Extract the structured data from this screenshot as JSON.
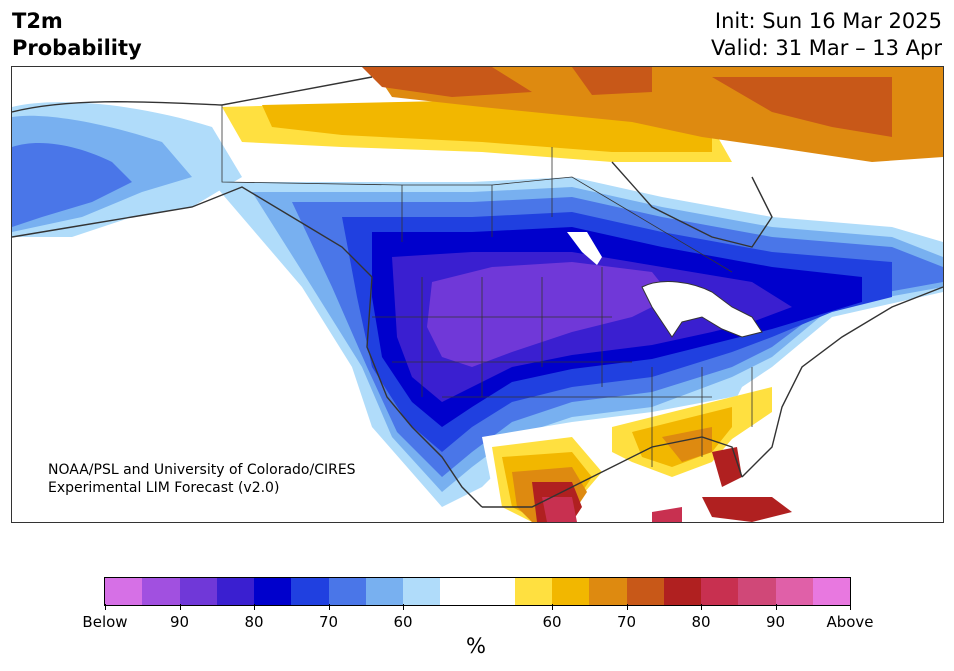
{
  "header": {
    "title": "T2m\nProbability",
    "init": "Init: Sun 16 Mar 2025",
    "valid": "Valid: 31 Mar – 13 Apr"
  },
  "credit": {
    "line1": "NOAA/PSL and University of Colorado/CIRES",
    "line2": "Experimental LIM Forecast (v2.0)"
  },
  "colorbar": {
    "unit": "%",
    "colors": [
      "#d670e6",
      "#a150e0",
      "#7038d8",
      "#3a1fd0",
      "#0000cc",
      "#2040e0",
      "#4a76e8",
      "#78b0f0",
      "#b0dcfa",
      "#ffffff",
      "#ffffff",
      "#ffe040",
      "#f2b700",
      "#de8a10",
      "#c85818",
      "#b02020",
      "#c83050",
      "#d04878",
      "#e060a8",
      "#e878e0"
    ],
    "ticks": [
      {
        "label": "Below"
      },
      {
        "label": "90"
      },
      {
        "label": "80"
      },
      {
        "label": "70"
      },
      {
        "label": "60"
      },
      {
        "label": "60"
      },
      {
        "label": "70"
      },
      {
        "label": "80"
      },
      {
        "label": "90"
      },
      {
        "label": "Above"
      }
    ]
  },
  "legend_colors": {
    "below_strong": "#7038d8",
    "below_80": "#0000cc",
    "below_70": "#4a76e8",
    "below_60": "#b0dcfa",
    "neutral": "#ffffff",
    "above_60": "#ffe040",
    "above_65": "#f2b700",
    "above_70": "#de8a10",
    "above_75": "#c85818",
    "above_80": "#b02020",
    "above_85": "#c83050"
  }
}
